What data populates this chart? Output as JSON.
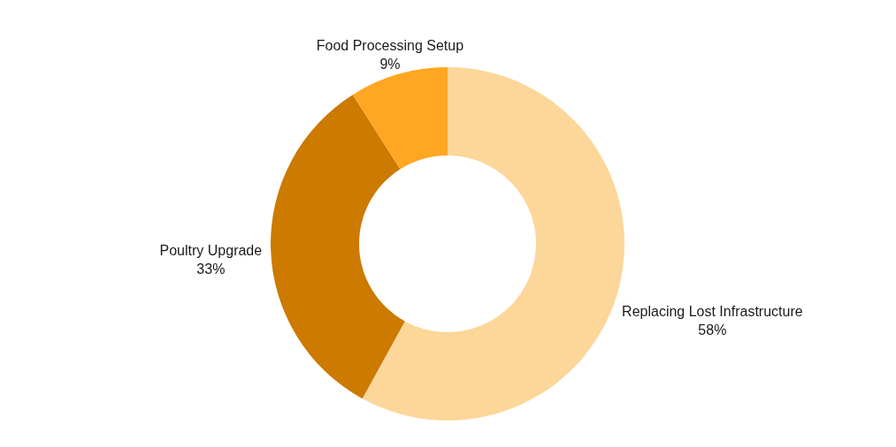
{
  "chart_data": {
    "type": "donut",
    "categories": [
      "Replacing Lost Infrastructure",
      "Poultry Upgrade",
      "Food Processing Setup"
    ],
    "values": [
      58,
      33,
      9
    ],
    "colors": [
      "#fdd699",
      "#cc7a00",
      "#ffa623"
    ],
    "value_labels": [
      "58%",
      "33%",
      "9%"
    ]
  }
}
